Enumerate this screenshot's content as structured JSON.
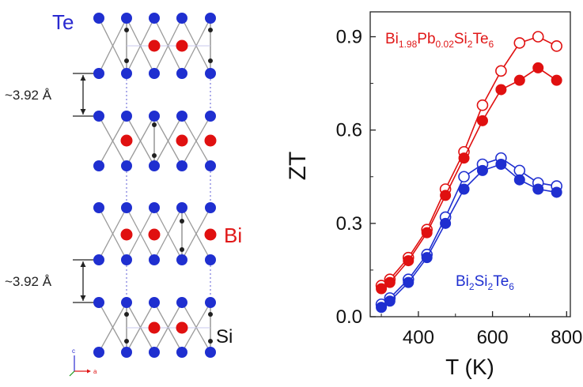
{
  "structure_panel": {
    "labels": {
      "te": "Te",
      "bi": "Bi",
      "si": "Si",
      "spacing_top": "~3.92 Å",
      "spacing_bottom": "~3.92 Å",
      "axis_c": "c",
      "axis_a": "a"
    },
    "colors": {
      "te_atom": "#1f2fd0",
      "bi_atom": "#e01010",
      "si_atom": "#202020",
      "bond": "#9a9a9a",
      "label_te": "#2a2ad0",
      "label_bi": "#e01818"
    }
  },
  "chart_data": {
    "type": "line",
    "xlabel": "T (K)",
    "ylabel": "ZT",
    "xlim": [
      270,
      810
    ],
    "ylim": [
      0,
      0.98
    ],
    "xticks": [
      400,
      600,
      800
    ],
    "yticks": [
      0.0,
      0.3,
      0.6,
      0.9
    ],
    "xtick_labels": [
      "400",
      "600",
      "800"
    ],
    "ytick_labels": [
      "0.0",
      "0.3",
      "0.6",
      "0.9"
    ],
    "grid": false,
    "series": [
      {
        "name": "Bi1.98Pb0.02Si2Te6",
        "color": "#e01010",
        "marker": "open",
        "x": [
          300,
          323,
          373,
          423,
          473,
          523,
          573,
          623,
          673,
          723,
          773
        ],
        "y": [
          0.1,
          0.12,
          0.19,
          0.28,
          0.41,
          0.53,
          0.68,
          0.79,
          0.88,
          0.9,
          0.87
        ]
      },
      {
        "name": "Bi1.98Pb0.02Si2Te6",
        "color": "#e01010",
        "marker": "filled",
        "x": [
          300,
          323,
          373,
          423,
          473,
          523,
          573,
          623,
          673,
          723,
          773
        ],
        "y": [
          0.09,
          0.11,
          0.18,
          0.27,
          0.39,
          0.51,
          0.63,
          0.73,
          0.76,
          0.8,
          0.76
        ]
      },
      {
        "name": "Bi2Si2Te6",
        "color": "#1f2fd0",
        "marker": "open",
        "x": [
          300,
          323,
          373,
          423,
          473,
          523,
          573,
          623,
          673,
          723,
          773
        ],
        "y": [
          0.04,
          0.06,
          0.12,
          0.2,
          0.32,
          0.45,
          0.49,
          0.51,
          0.47,
          0.43,
          0.42
        ]
      },
      {
        "name": "Bi2Si2Te6",
        "color": "#1f2fd0",
        "marker": "filled",
        "x": [
          300,
          323,
          373,
          423,
          473,
          523,
          573,
          623,
          673,
          723,
          773
        ],
        "y": [
          0.03,
          0.05,
          0.11,
          0.19,
          0.3,
          0.41,
          0.47,
          0.49,
          0.44,
          0.41,
          0.4
        ]
      }
    ],
    "legend": [
      {
        "main": "Bi",
        "sub": "1.98",
        "main2": "Pb",
        "sub2": "0.02",
        "main3": "Si",
        "sub3": "2",
        "main4": "Te",
        "sub4": "6",
        "color": "#e01818"
      },
      {
        "main": "Bi",
        "sub": "2",
        "main2": "Si",
        "sub2": "2",
        "main3": "Te",
        "sub3": "6",
        "color": "#1f2fd0"
      }
    ]
  }
}
